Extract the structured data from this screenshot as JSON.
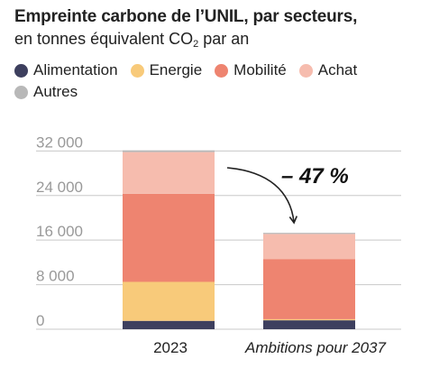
{
  "header": {
    "title": "Empreinte carbone de l’UNIL, par secteurs,",
    "subtitle_before": "en tonnes équivalent CO",
    "subtitle_sub": "2",
    "subtitle_after": " par an"
  },
  "colors": {
    "alimentation": "#3d3f5e",
    "energie": "#f8ca7a",
    "mobilite": "#ee8470",
    "achat": "#f6bcae",
    "autres": "#b8b8b8",
    "gridline": "#c8c8c8",
    "tick": "#999999"
  },
  "chart_data": {
    "type": "bar",
    "stacked": true,
    "title": "Empreinte carbone de l’UNIL, par secteurs,",
    "subtitle": "en tonnes équivalent CO2 par an",
    "categories": [
      "2023",
      "Ambitions pour 2037"
    ],
    "series": [
      {
        "name": "Alimentation",
        "color": "#3d3f5e",
        "values": [
          1500,
          1600
        ]
      },
      {
        "name": "Energie",
        "color": "#f8ca7a",
        "values": [
          7000,
          200
        ]
      },
      {
        "name": "Mobilité",
        "color": "#ee8470",
        "values": [
          15800,
          10800
        ]
      },
      {
        "name": "Achat",
        "color": "#f6bcae",
        "values": [
          7500,
          4500
        ]
      },
      {
        "name": "Autres",
        "color": "#b8b8b8",
        "values": [
          300,
          200
        ]
      }
    ],
    "yticks": [
      0,
      8000,
      16000,
      24000,
      32000
    ],
    "ytick_labels": [
      "0",
      "8 000",
      "16 000",
      "24 000",
      "32 000"
    ],
    "ylim": [
      0,
      34000
    ],
    "grid": true,
    "legend_position": "top",
    "annotation": {
      "text": "– 47 %",
      "from": "2023",
      "to": "Ambitions pour 2037"
    }
  }
}
